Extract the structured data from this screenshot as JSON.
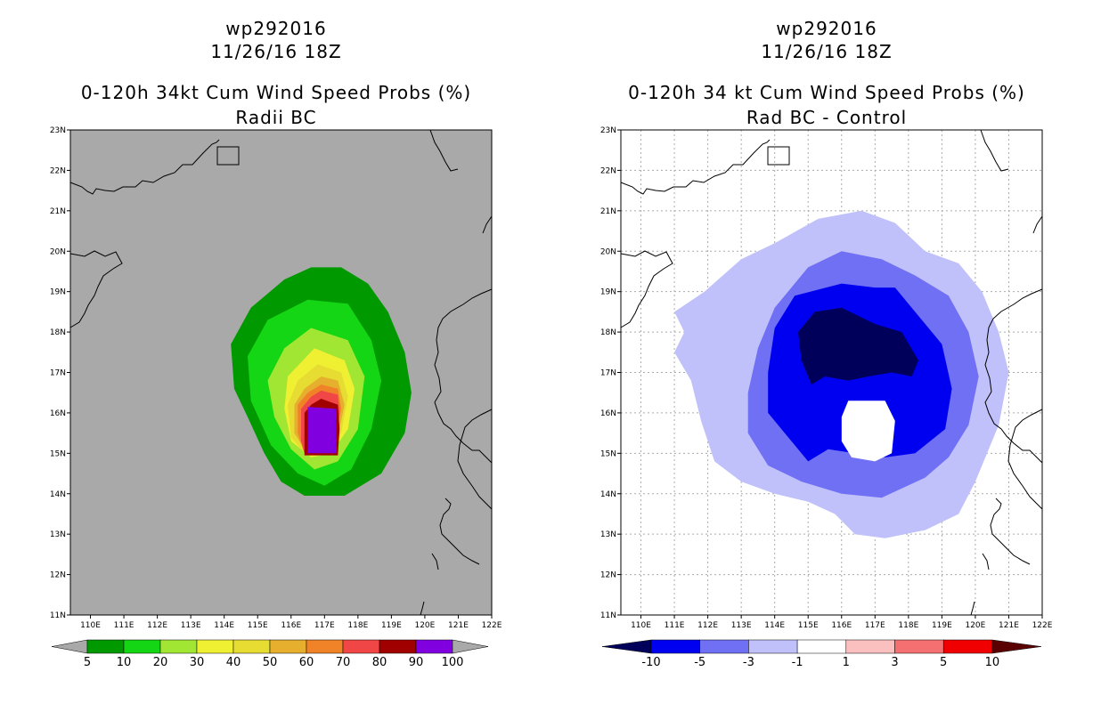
{
  "left": {
    "storm_id": "wp292016",
    "datetime": "11/26/16 18Z",
    "title": "0-120h 34kt Cum Wind Speed Probs (%)",
    "subtitle": "Radii BC",
    "background_color": "#a9a9a9",
    "colorbar": {
      "labels": [
        "5",
        "10",
        "20",
        "30",
        "40",
        "50",
        "60",
        "70",
        "80",
        "90",
        "100"
      ],
      "colors": [
        "#009a00",
        "#14d614",
        "#a0e632",
        "#f0f032",
        "#e6dc32",
        "#e6af2d",
        "#f08228",
        "#f04646",
        "#a00000",
        "#8000e0"
      ],
      "extend_color": "#a9a9a9"
    }
  },
  "right": {
    "storm_id": "wp292016",
    "datetime": "11/26/16 18Z",
    "title": "0-120h 34 kt Cum Wind Speed Probs (%)",
    "subtitle": "Rad BC - Control",
    "background_color": "#ffffff",
    "colorbar": {
      "labels": [
        "-10",
        "-5",
        "-3",
        "-1",
        "1",
        "3",
        "5",
        "10"
      ],
      "colors": [
        "#0000f0",
        "#7070f5",
        "#c0c0fa",
        "#ffffff",
        "#fac0c0",
        "#f57070",
        "#f00000"
      ],
      "extend_low_color": "#00005a",
      "extend_high_color": "#5a0000"
    }
  },
  "chart_data": [
    {
      "type": "heatmap",
      "title": "0-120h 34kt Cum Wind Speed Probs (%)",
      "subtitle": "Radii BC",
      "x_ticks": [
        "110E",
        "111E",
        "112E",
        "113E",
        "114E",
        "115E",
        "116E",
        "117E",
        "118E",
        "119E",
        "120E",
        "121E",
        "122E"
      ],
      "y_ticks": [
        "11N",
        "12N",
        "13N",
        "14N",
        "15N",
        "16N",
        "17N",
        "18N",
        "19N",
        "20N",
        "21N",
        "22N",
        "23N"
      ],
      "xlim": [
        109.4,
        122
      ],
      "ylim": [
        11,
        23
      ],
      "levels": [
        5,
        10,
        20,
        30,
        40,
        50,
        60,
        70,
        80,
        90,
        100
      ],
      "contours": [
        {
          "level": 5,
          "points": [
            [
              116.6,
              19.6
            ],
            [
              117.5,
              19.6
            ],
            [
              118.3,
              19.2
            ],
            [
              118.9,
              18.5
            ],
            [
              119.4,
              17.5
            ],
            [
              119.6,
              16.5
            ],
            [
              119.4,
              15.5
            ],
            [
              118.7,
              14.5
            ],
            [
              117.6,
              13.95
            ],
            [
              116.4,
              13.95
            ],
            [
              115.7,
              14.3
            ],
            [
              115.2,
              15.0
            ],
            [
              114.7,
              15.9
            ],
            [
              114.3,
              16.6
            ],
            [
              114.2,
              17.7
            ],
            [
              114.8,
              18.6
            ],
            [
              115.8,
              19.3
            ]
          ]
        },
        {
          "level": 10,
          "points": [
            [
              116.5,
              18.8
            ],
            [
              117.7,
              18.7
            ],
            [
              118.4,
              17.8
            ],
            [
              118.7,
              16.8
            ],
            [
              118.4,
              15.6
            ],
            [
              117.8,
              14.6
            ],
            [
              117.0,
              14.2
            ],
            [
              116.2,
              14.5
            ],
            [
              115.4,
              15.2
            ],
            [
              114.8,
              16.3
            ],
            [
              114.7,
              17.4
            ],
            [
              115.3,
              18.3
            ]
          ]
        },
        {
          "level": 20,
          "points": [
            [
              116.6,
              18.1
            ],
            [
              117.7,
              17.8
            ],
            [
              118.2,
              16.9
            ],
            [
              118.0,
              15.6
            ],
            [
              117.4,
              14.8
            ],
            [
              116.7,
              14.6
            ],
            [
              116.0,
              15.1
            ],
            [
              115.5,
              15.9
            ],
            [
              115.3,
              16.8
            ],
            [
              115.8,
              17.6
            ]
          ]
        },
        {
          "level": 30,
          "points": [
            [
              116.7,
              17.6
            ],
            [
              117.6,
              17.3
            ],
            [
              117.9,
              16.6
            ],
            [
              117.7,
              15.6
            ],
            [
              117.2,
              15.0
            ],
            [
              116.6,
              14.9
            ],
            [
              116.0,
              15.3
            ],
            [
              115.8,
              16.1
            ],
            [
              115.9,
              16.9
            ]
          ]
        },
        {
          "level": 40,
          "points": [
            [
              116.8,
              17.2
            ],
            [
              117.5,
              17.0
            ],
            [
              117.7,
              16.4
            ],
            [
              117.5,
              15.5
            ],
            [
              117.0,
              15.0
            ],
            [
              116.4,
              15.0
            ],
            [
              116.0,
              15.4
            ],
            [
              115.9,
              16.2
            ],
            [
              116.2,
              16.8
            ]
          ]
        },
        {
          "level": 50,
          "points": [
            [
              116.9,
              16.9
            ],
            [
              117.4,
              16.8
            ],
            [
              117.6,
              16.2
            ],
            [
              117.4,
              15.4
            ],
            [
              116.9,
              15.0
            ],
            [
              116.4,
              15.1
            ],
            [
              116.1,
              15.5
            ],
            [
              116.1,
              16.2
            ],
            [
              116.4,
              16.6
            ]
          ]
        },
        {
          "level": 60,
          "points": [
            [
              116.9,
              16.7
            ],
            [
              117.4,
              16.6
            ],
            [
              117.5,
              16.1
            ],
            [
              117.3,
              15.3
            ],
            [
              116.4,
              15.0
            ],
            [
              116.2,
              15.5
            ],
            [
              116.2,
              16.2
            ],
            [
              116.5,
              16.5
            ]
          ]
        },
        {
          "level": 70,
          "points": [
            [
              116.9,
              16.55
            ],
            [
              117.4,
              16.45
            ],
            [
              117.45,
              16.0
            ],
            [
              117.3,
              15.0
            ],
            [
              116.4,
              15.0
            ],
            [
              116.3,
              15.3
            ],
            [
              116.3,
              16.1
            ],
            [
              116.6,
              16.4
            ]
          ]
        },
        {
          "level": 80,
          "points": [
            [
              116.9,
              16.35
            ],
            [
              117.4,
              16.2
            ],
            [
              117.45,
              15.6
            ],
            [
              117.4,
              14.95
            ],
            [
              116.4,
              14.95
            ],
            [
              116.4,
              15.4
            ],
            [
              116.4,
              16.0
            ],
            [
              116.6,
              16.2
            ]
          ]
        },
        {
          "level": 90,
          "points": [
            [
              116.5,
              16.15
            ],
            [
              117.35,
              16.1
            ],
            [
              117.35,
              15.0
            ],
            [
              116.5,
              15.0
            ]
          ]
        }
      ]
    },
    {
      "type": "heatmap",
      "title": "0-120h 34 kt Cum Wind Speed Probs (%)",
      "subtitle": "Rad BC - Control",
      "x_ticks": [
        "110E",
        "111E",
        "112E",
        "113E",
        "114E",
        "115E",
        "116E",
        "117E",
        "118E",
        "119E",
        "120E",
        "121E",
        "122E"
      ],
      "y_ticks": [
        "11N",
        "12N",
        "13N",
        "14N",
        "15N",
        "16N",
        "17N",
        "18N",
        "19N",
        "20N",
        "21N",
        "22N",
        "23N"
      ],
      "xlim": [
        109.4,
        122
      ],
      "ylim": [
        11,
        23
      ],
      "levels": [
        -10,
        -5,
        -3,
        -1,
        1,
        3,
        5,
        10
      ],
      "contours": [
        {
          "level": -1,
          "points": [
            [
              116.6,
              21.0
            ],
            [
              117.6,
              20.7
            ],
            [
              118.5,
              20.0
            ],
            [
              119.5,
              19.7
            ],
            [
              120.2,
              19.0
            ],
            [
              120.7,
              18.0
            ],
            [
              121.0,
              17.0
            ],
            [
              120.7,
              15.7
            ],
            [
              120.0,
              14.3
            ],
            [
              119.5,
              13.5
            ],
            [
              118.5,
              13.1
            ],
            [
              117.3,
              12.9
            ],
            [
              116.4,
              13.0
            ],
            [
              115.8,
              13.5
            ],
            [
              115.0,
              13.8
            ],
            [
              114.0,
              14.0
            ],
            [
              113.0,
              14.3
            ],
            [
              112.2,
              14.8
            ],
            [
              111.8,
              15.8
            ],
            [
              111.5,
              16.8
            ],
            [
              111.0,
              17.5
            ],
            [
              111.3,
              18.0
            ],
            [
              111.0,
              18.5
            ],
            [
              111.9,
              19.0
            ],
            [
              113.0,
              19.8
            ],
            [
              114.0,
              20.2
            ],
            [
              115.3,
              20.8
            ]
          ]
        },
        {
          "level": -3,
          "points": [
            [
              116.0,
              20.0
            ],
            [
              117.2,
              19.8
            ],
            [
              118.2,
              19.4
            ],
            [
              119.2,
              18.9
            ],
            [
              119.8,
              18.0
            ],
            [
              120.1,
              16.9
            ],
            [
              119.8,
              15.7
            ],
            [
              119.2,
              14.9
            ],
            [
              118.5,
              14.4
            ],
            [
              117.2,
              13.9
            ],
            [
              116.0,
              14.0
            ],
            [
              114.8,
              14.3
            ],
            [
              113.8,
              14.7
            ],
            [
              113.2,
              15.5
            ],
            [
              113.2,
              16.5
            ],
            [
              113.5,
              17.6
            ],
            [
              114.0,
              18.6
            ],
            [
              115.0,
              19.6
            ]
          ]
        },
        {
          "level": -5,
          "points": [
            [
              116.0,
              19.2
            ],
            [
              117.0,
              19.1
            ],
            [
              117.6,
              19.1
            ],
            [
              118.2,
              18.5
            ],
            [
              119.0,
              17.7
            ],
            [
              119.3,
              16.6
            ],
            [
              119.1,
              15.6
            ],
            [
              118.2,
              15.0
            ],
            [
              117.3,
              14.9
            ],
            [
              116.4,
              15.0
            ],
            [
              115.6,
              15.1
            ],
            [
              115.0,
              14.8
            ],
            [
              114.5,
              15.3
            ],
            [
              113.8,
              16.0
            ],
            [
              113.8,
              17.0
            ],
            [
              114.0,
              18.1
            ],
            [
              114.6,
              18.9
            ]
          ]
        },
        {
          "level": -10,
          "points": [
            [
              116.0,
              18.6
            ],
            [
              117.0,
              18.2
            ],
            [
              117.8,
              18.0
            ],
            [
              118.3,
              17.3
            ],
            [
              118.1,
              16.9
            ],
            [
              117.5,
              17.0
            ],
            [
              116.8,
              16.9
            ],
            [
              116.2,
              16.8
            ],
            [
              115.5,
              16.9
            ],
            [
              115.1,
              16.7
            ],
            [
              114.8,
              17.3
            ],
            [
              114.7,
              18.0
            ],
            [
              115.2,
              18.5
            ]
          ]
        },
        {
          "level": 1,
          "points": [
            [
              116.2,
              16.3
            ],
            [
              117.3,
              16.3
            ],
            [
              117.6,
              15.8
            ],
            [
              117.5,
              15.0
            ],
            [
              117.0,
              14.8
            ],
            [
              116.3,
              14.9
            ],
            [
              116.0,
              15.3
            ],
            [
              116.0,
              15.9
            ]
          ]
        }
      ]
    }
  ]
}
